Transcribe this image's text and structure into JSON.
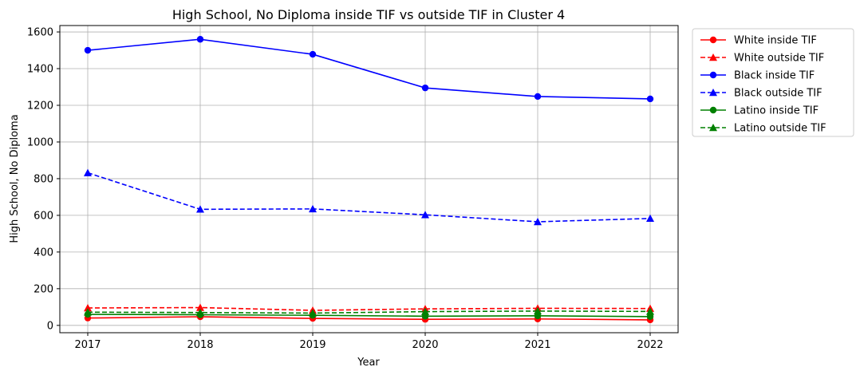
{
  "chart_data": {
    "type": "line",
    "title": "High School, No Diploma inside TIF vs outside TIF in Cluster 4",
    "xlabel": "Year",
    "ylabel": "High School, No Diploma",
    "x": [
      "2017",
      "2018",
      "2019",
      "2020",
      "2021",
      "2022"
    ],
    "yticks": [
      0,
      200,
      400,
      600,
      800,
      1000,
      1200,
      1400,
      1600
    ],
    "ylim": [
      -40,
      1635
    ],
    "grid": true,
    "legend_position": "outside-upper-right",
    "series": [
      {
        "name": "White inside TIF",
        "color": "#ff0000",
        "linestyle": "solid",
        "marker": "circle",
        "values": [
          40,
          47,
          38,
          33,
          35,
          30
        ]
      },
      {
        "name": "White outside TIF",
        "color": "#ff0000",
        "linestyle": "dashed",
        "marker": "triangle",
        "values": [
          95,
          97,
          82,
          90,
          93,
          92
        ]
      },
      {
        "name": "Black inside TIF",
        "color": "#0000ff",
        "linestyle": "solid",
        "marker": "circle",
        "values": [
          1500,
          1560,
          1478,
          1295,
          1248,
          1235
        ]
      },
      {
        "name": "Black outside TIF",
        "color": "#0000ff",
        "linestyle": "dashed",
        "marker": "triangle",
        "values": [
          832,
          633,
          635,
          603,
          565,
          583
        ]
      },
      {
        "name": "Latino inside TIF",
        "color": "#008000",
        "linestyle": "solid",
        "marker": "circle",
        "values": [
          60,
          58,
          55,
          50,
          52,
          48
        ]
      },
      {
        "name": "Latino outside TIF",
        "color": "#008000",
        "linestyle": "dashed",
        "marker": "triangle",
        "values": [
          72,
          70,
          67,
          75,
          78,
          76
        ]
      }
    ]
  }
}
